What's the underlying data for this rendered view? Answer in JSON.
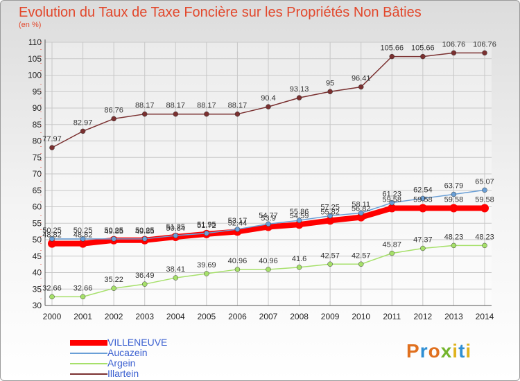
{
  "chart_data": {
    "type": "line",
    "title": "Evolution du Taux de Taxe Foncière sur les Propriétés Non Bâties",
    "ylabel": "(en %)",
    "xlabel": "",
    "ylim": [
      30,
      110
    ],
    "yticks": [
      "30",
      "35",
      "40",
      "45",
      "50",
      "55",
      "60",
      "65",
      "70",
      "75",
      "80",
      "85",
      "90",
      "95",
      "100",
      "105",
      "110"
    ],
    "categories": [
      "2000",
      "2001",
      "2002",
      "2003",
      "2004",
      "2005",
      "2006",
      "2007",
      "2008",
      "2009",
      "2010",
      "2011",
      "2012",
      "2013",
      "2014"
    ],
    "series": [
      {
        "name": "VILLENEUVE",
        "color": "#ff0000",
        "values": [
          48.82,
          48.82,
          49.85,
          49.85,
          50.84,
          51.72,
          52.44,
          53.9,
          54.59,
          55.82,
          56.82,
          59.58,
          59.58,
          59.58,
          59.58
        ],
        "labels": [
          "48.82",
          "48.82",
          "49.85",
          "49.85",
          "50.84",
          "51.72",
          "52.44",
          "53.9",
          "54.59",
          "55.82",
          "56.82",
          "59.58",
          "59.58",
          "59.58",
          "59.58"
        ]
      },
      {
        "name": "Aucazein",
        "color": "#6a9fd6",
        "values": [
          50.25,
          50.25,
          50.25,
          50.25,
          51.25,
          51.95,
          53.17,
          54.77,
          55.86,
          57.25,
          58.11,
          61.23,
          62.54,
          63.79,
          65.07
        ],
        "labels": [
          "50.25",
          "50.25",
          "50.25",
          "50.25",
          "51.25",
          "51.95",
          "53.17",
          "54.77",
          "55.86",
          "57.25",
          "58.11",
          "61.23",
          "62.54",
          "63.79",
          "65.07"
        ]
      },
      {
        "name": "Argein",
        "color": "#a6e06a",
        "values": [
          32.66,
          32.66,
          35.22,
          36.49,
          38.41,
          39.69,
          40.96,
          40.96,
          41.6,
          42.57,
          42.57,
          45.87,
          47.37,
          48.23,
          48.23
        ],
        "labels": [
          "32.66",
          "32.66",
          "35.22",
          "36.49",
          "38.41",
          "39.69",
          "40.96",
          "40.96",
          "41.6",
          "42.57",
          "42.57",
          "45.87",
          "47.37",
          "48.23",
          "48.23"
        ]
      },
      {
        "name": "Illartein",
        "color": "#7a3030",
        "values": [
          77.97,
          82.97,
          86.76,
          88.17,
          88.17,
          88.17,
          88.17,
          90.4,
          93.13,
          95,
          96.41,
          105.66,
          105.66,
          106.76,
          106.76
        ],
        "labels": [
          "77.97",
          "82.97",
          "86.76",
          "88.17",
          "88.17",
          "88.17",
          "88.17",
          "90.4",
          "93.13",
          "95",
          "96.41",
          "105.66",
          "105.66",
          "106.76",
          "106.76"
        ]
      }
    ]
  },
  "legend": {
    "items": [
      "VILLENEUVE",
      "Aucazein",
      "Argein",
      "Illartein"
    ]
  },
  "logo": {
    "text": "Proxiti"
  }
}
